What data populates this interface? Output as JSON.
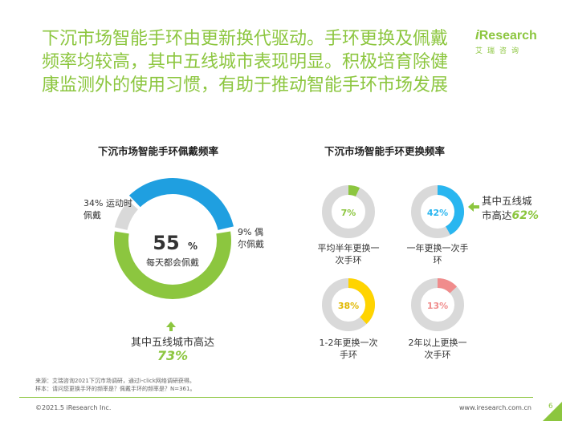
{
  "headline": "下沉市场智能手环由更新换代驱动。手环更换及佩戴频率均较高，其中五线城市表现明显。积极培育除健康监测外的使用习惯，有助于推动智能手环市场发展",
  "logo": {
    "brand_i": "i",
    "brand_rest": "Research",
    "sub": "艾瑞咨询"
  },
  "colors": {
    "accent_green": "#8cc63f",
    "blue": "#1f9fe0",
    "grey": "#d9d9d9",
    "light_blue": "#29b6f0",
    "yellow": "#ffd400",
    "pink": "#f08c8c"
  },
  "left_chart": {
    "title": "下沉市场智能手环佩戴频率",
    "center_value": "55",
    "center_unit": "%",
    "center_label": "每天都会佩戴",
    "label_sport": "34% 运动时佩戴",
    "label_occasional": "9% 偶尔佩戴",
    "callout_text": "其中五线城市高达",
    "callout_value": "73%"
  },
  "right_chart": {
    "title": "下沉市场智能手环更换频率",
    "callout_text": "其中五线城市高达",
    "callout_value": "62%"
  },
  "chart_data": [
    {
      "type": "pie",
      "title": "下沉市场智能手环佩戴频率",
      "categories": [
        "每天都会佩戴",
        "运动时佩戴",
        "偶尔佩戴"
      ],
      "values": [
        55,
        34,
        9
      ],
      "colors": [
        "#8cc63f",
        "#1f9fe0",
        "#d9d9d9"
      ]
    },
    {
      "type": "pie",
      "title": "下沉市场智能手环更换频率",
      "categories": [
        "平均半年更换一次手环",
        "一年更换一次手环",
        "1-2年更换一次手环",
        "2年以上更换一次手环"
      ],
      "values": [
        7,
        42,
        38,
        13
      ],
      "colors": [
        "#8cc63f",
        "#29b6f0",
        "#ffd400",
        "#f08c8c"
      ]
    }
  ],
  "donut_labels": [
    "7%",
    "42%",
    "38%",
    "13%"
  ],
  "category_labels": [
    "平均半年更换一次手环",
    "一年更换一次手环",
    "1-2年更换一次手环",
    "2年以上更换一次手环"
  ],
  "footnote": {
    "source": "来源：艾瑞咨询2021下沉市场调研，通过i-click网络调研获得。",
    "sample": "样本：请问您更换手环的频率是？佩戴手环的频率是？N=361。"
  },
  "footer": {
    "copyright": "©2021.5 iResearch Inc.",
    "website": "www.iresearch.com.cn",
    "page": "6"
  }
}
